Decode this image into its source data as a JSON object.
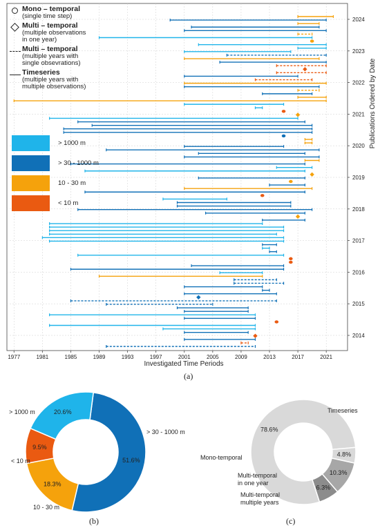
{
  "colors": {
    "gt1000": "#1fb4ea",
    "30to1000": "#1070b7",
    "10to30": "#f5a20c",
    "lt10": "#ea5a11",
    "grey_light": "#d9d9d9",
    "grey_mid": "#a7a7a7",
    "grey_dark": "#8c8c8c"
  },
  "legend_type": [
    {
      "symbol": "circle-icon",
      "title": "Mono – temporal",
      "desc": [
        "(single time step)"
      ]
    },
    {
      "symbol": "diamond-icon",
      "title": "Multi – temporal",
      "desc": [
        "(multiple observations",
        " in one year)"
      ]
    },
    {
      "symbol": "dashed-line-icon",
      "title": "Multi – temporal",
      "desc": [
        "(multiple years with",
        "single obsevrations)"
      ]
    },
    {
      "symbol": "solid-line-icon",
      "title": "Timeseries",
      "desc": [
        "(multiple years with",
        "multiple observations)"
      ]
    }
  ],
  "legend_resolution": [
    {
      "label": "> 1000 m",
      "color": "#1fb4ea"
    },
    {
      "label": "> 30 - 1000 m",
      "color": "#1070b7"
    },
    {
      "label": "10 - 30 m",
      "color": "#f5a20c"
    },
    {
      "label": "< 10 m",
      "color": "#ea5a11"
    }
  ],
  "panel_labels": {
    "a": "(a)",
    "b": "(b)",
    "c": "(c)"
  },
  "chart_data": [
    {
      "type": "timeline",
      "xlabel": "Investigated Time Periods",
      "ylabel": "Publications Ordered by Date",
      "xlim": [
        1976,
        2024
      ],
      "xticks": [
        1977,
        1981,
        1985,
        1989,
        1993,
        1997,
        2001,
        2005,
        2009,
        2013,
        2017,
        2021
      ],
      "year_ticks": [
        2024,
        2023,
        2022,
        2021,
        2020,
        2019,
        2018,
        2017,
        2016,
        2015,
        2014
      ],
      "grid": true,
      "entries": [
        {
          "start": 2017,
          "end": 2022,
          "color": "10to30",
          "style": "solid"
        },
        {
          "start": 1999,
          "end": 2021,
          "color": "30to1000",
          "style": "solid"
        },
        {
          "start": 2017,
          "end": 2020,
          "color": "10to30",
          "style": "solid"
        },
        {
          "start": 2002,
          "end": 2020,
          "color": "30to1000",
          "style": "solid"
        },
        {
          "start": 2001,
          "end": 2021,
          "color": "30to1000",
          "style": "solid"
        },
        {
          "start": 2017,
          "end": 2019,
          "color": "10to30",
          "style": "dashed"
        },
        {
          "start": 1989,
          "end": 2019,
          "color": "gt1000",
          "style": "solid"
        },
        {
          "start": 2019,
          "end": 2019,
          "color": "10to30",
          "style": "point"
        },
        {
          "start": 2003,
          "end": 2021,
          "color": "gt1000",
          "style": "solid"
        },
        {
          "start": 2017,
          "end": 2021,
          "color": "gt1000",
          "style": "solid"
        },
        {
          "start": 2001,
          "end": 2016,
          "color": "gt1000",
          "style": "solid"
        },
        {
          "start": 2007,
          "end": 2021,
          "color": "30to1000",
          "style": "dashed"
        },
        {
          "start": 2001,
          "end": 2020,
          "color": "10to30",
          "style": "solid"
        },
        {
          "start": 2006,
          "end": 2021,
          "color": "30to1000",
          "style": "solid"
        },
        {
          "start": 2014,
          "end": 2021,
          "color": "lt10",
          "style": "dashed"
        },
        {
          "start": 2018,
          "end": 2018,
          "color": "lt10",
          "style": "diamond"
        },
        {
          "start": 2014,
          "end": 2021,
          "color": "lt10",
          "style": "dashed"
        },
        {
          "start": 2001,
          "end": 2017,
          "color": "30to1000",
          "style": "solid"
        },
        {
          "start": 2011,
          "end": 2019,
          "color": "lt10",
          "style": "dashed"
        },
        {
          "start": 2001,
          "end": 2021,
          "color": "10to30",
          "style": "solid"
        },
        {
          "start": 2001,
          "end": 2020,
          "color": "30to1000",
          "style": "solid"
        },
        {
          "start": 2017,
          "end": 2020,
          "color": "10to30",
          "style": "dashed"
        },
        {
          "start": 2012,
          "end": 2019,
          "color": "30to1000",
          "style": "solid"
        },
        {
          "start": 2017,
          "end": 2021,
          "color": "10to30",
          "style": "solid"
        },
        {
          "start": 1977,
          "end": 2021,
          "color": "10to30",
          "style": "solid"
        },
        {
          "start": 2001,
          "end": 2015,
          "color": "gt1000",
          "style": "solid"
        },
        {
          "start": 2011,
          "end": 2012,
          "color": "gt1000",
          "style": "solid"
        },
        {
          "start": 2015,
          "end": 2015,
          "color": "lt10",
          "style": "point"
        },
        {
          "start": 2017,
          "end": 2017,
          "color": "10to30",
          "style": "diamond"
        },
        {
          "start": 1982,
          "end": 2017,
          "color": "gt1000",
          "style": "solid"
        },
        {
          "start": 1986,
          "end": 2018,
          "color": "30to1000",
          "style": "solid"
        },
        {
          "start": 1988,
          "end": 2019,
          "color": "30to1000",
          "style": "solid"
        },
        {
          "start": 1984,
          "end": 2019,
          "color": "30to1000",
          "style": "solid"
        },
        {
          "start": 1984,
          "end": 2019,
          "color": "30to1000",
          "style": "solid"
        },
        {
          "start": 2015,
          "end": 2015,
          "color": "30to1000",
          "style": "point"
        },
        {
          "start": 2018,
          "end": 2019,
          "color": "10to30",
          "style": "solid"
        },
        {
          "start": 2018,
          "end": 2019,
          "color": "10to30",
          "style": "solid"
        },
        {
          "start": 2001,
          "end": 2015,
          "color": "30to1000",
          "style": "solid"
        },
        {
          "start": 1990,
          "end": 2020,
          "color": "30to1000",
          "style": "solid"
        },
        {
          "start": 2003,
          "end": 2018,
          "color": "30to1000",
          "style": "solid"
        },
        {
          "start": 2001,
          "end": 2020,
          "color": "30to1000",
          "style": "solid"
        },
        {
          "start": 2018,
          "end": 2020,
          "color": "10to30",
          "style": "solid"
        },
        {
          "start": 1985,
          "end": 2018,
          "color": "30to1000",
          "style": "solid"
        },
        {
          "start": 2014,
          "end": 2019,
          "color": "gt1000",
          "style": "solid"
        },
        {
          "start": 1987,
          "end": 2018,
          "color": "gt1000",
          "style": "solid"
        },
        {
          "start": 2019,
          "end": 2019,
          "color": "10to30",
          "style": "diamond"
        },
        {
          "start": 2003,
          "end": 2018,
          "color": "30to1000",
          "style": "solid"
        },
        {
          "start": 2016,
          "end": 2016,
          "color": "10to30",
          "style": "point"
        },
        {
          "start": 2013,
          "end": 2018,
          "color": "30to1000",
          "style": "solid"
        },
        {
          "start": 2001,
          "end": 2019,
          "color": "10to30",
          "style": "solid"
        },
        {
          "start": 1987,
          "end": 2018,
          "color": "30to1000",
          "style": "solid"
        },
        {
          "start": 2012,
          "end": 2012,
          "color": "lt10",
          "style": "point"
        },
        {
          "start": 1998,
          "end": 2007,
          "color": "gt1000",
          "style": "solid"
        },
        {
          "start": 2000,
          "end": 2016,
          "color": "30to1000",
          "style": "solid"
        },
        {
          "start": 2000,
          "end": 2016,
          "color": "30to1000",
          "style": "solid"
        },
        {
          "start": 1986,
          "end": 2019,
          "color": "30to1000",
          "style": "solid"
        },
        {
          "start": 2004,
          "end": 2018,
          "color": "30to1000",
          "style": "solid"
        },
        {
          "start": 2017,
          "end": 2017,
          "color": "10to30",
          "style": "diamond"
        },
        {
          "start": 2012,
          "end": 2018,
          "color": "30to1000",
          "style": "solid"
        },
        {
          "start": 1982,
          "end": 2012,
          "color": "gt1000",
          "style": "solid"
        },
        {
          "start": 1982,
          "end": 2015,
          "color": "gt1000",
          "style": "solid"
        },
        {
          "start": 1982,
          "end": 2015,
          "color": "gt1000",
          "style": "solid"
        },
        {
          "start": 1982,
          "end": 2014,
          "color": "gt1000",
          "style": "solid"
        },
        {
          "start": 1981,
          "end": 2015,
          "color": "gt1000",
          "style": "solid"
        },
        {
          "start": 1982,
          "end": 2015,
          "color": "gt1000",
          "style": "solid"
        },
        {
          "start": 2012,
          "end": 2014,
          "color": "30to1000",
          "style": "solid"
        },
        {
          "start": 2012,
          "end": 2013,
          "color": "gt1000",
          "style": "solid"
        },
        {
          "start": 2013,
          "end": 2014,
          "color": "30to1000",
          "style": "solid"
        },
        {
          "start": 1986,
          "end": 2015,
          "color": "gt1000",
          "style": "solid"
        },
        {
          "start": 2016,
          "end": 2016,
          "color": "lt10",
          "style": "point"
        },
        {
          "start": 2016,
          "end": 2016,
          "color": "lt10",
          "style": "point"
        },
        {
          "start": 2002,
          "end": 2015,
          "color": "30to1000",
          "style": "solid"
        },
        {
          "start": 1985,
          "end": 2015,
          "color": "30to1000",
          "style": "solid"
        },
        {
          "start": 2006,
          "end": 2012,
          "color": "gt1000",
          "style": "solid"
        },
        {
          "start": 1989,
          "end": 2012,
          "color": "10to30",
          "style": "solid"
        },
        {
          "start": 2008,
          "end": 2014,
          "color": "30to1000",
          "style": "dashed"
        },
        {
          "start": 2008,
          "end": 2015,
          "color": "30to1000",
          "style": "dashed"
        },
        {
          "start": 2001,
          "end": 2012,
          "color": "30to1000",
          "style": "solid"
        },
        {
          "start": 2012,
          "end": 2013,
          "color": "30to1000",
          "style": "solid"
        },
        {
          "start": 2001,
          "end": 2014,
          "color": "30to1000",
          "style": "solid"
        },
        {
          "start": 2003,
          "end": 2003,
          "color": "30to1000",
          "style": "diamond"
        },
        {
          "start": 1985,
          "end": 2014,
          "color": "30to1000",
          "style": "dashed"
        },
        {
          "start": 1990,
          "end": 2005,
          "color": "30to1000",
          "style": "dashed"
        },
        {
          "start": 2000,
          "end": 2010,
          "color": "30to1000",
          "style": "solid"
        },
        {
          "start": 2001,
          "end": 2010,
          "color": "30to1000",
          "style": "solid"
        },
        {
          "start": 1982,
          "end": 2011,
          "color": "gt1000",
          "style": "solid"
        },
        {
          "start": 2001,
          "end": 2011,
          "color": "30to1000",
          "style": "solid"
        },
        {
          "start": 2014,
          "end": 2014,
          "color": "lt10",
          "style": "point"
        },
        {
          "start": 1982,
          "end": 2011,
          "color": "gt1000",
          "style": "solid"
        },
        {
          "start": 1998,
          "end": 2011,
          "color": "gt1000",
          "style": "solid"
        },
        {
          "start": 2001,
          "end": 2010,
          "color": "30to1000",
          "style": "solid"
        },
        {
          "start": 2011,
          "end": 2011,
          "color": "lt10",
          "style": "diamond"
        },
        {
          "start": 2001,
          "end": 2011,
          "color": "30to1000",
          "style": "solid"
        },
        {
          "start": 2009,
          "end": 2010,
          "color": "lt10",
          "style": "dashed"
        },
        {
          "start": 1990,
          "end": 2011,
          "color": "30to1000",
          "style": "dashed"
        }
      ]
    },
    {
      "type": "pie",
      "subtype": "donut",
      "slices": [
        {
          "label": "> 30 - 1000 m",
          "value": 51.6,
          "text": "51.6%",
          "color": "#1070b7"
        },
        {
          "label": "10 - 30 m",
          "value": 18.3,
          "text": "18.3%",
          "color": "#f5a20c"
        },
        {
          "label": "< 10 m",
          "value": 9.5,
          "text": "9.5%",
          "color": "#ea5a11"
        },
        {
          "label": "> 1000 m",
          "value": 20.6,
          "text": "20.6%",
          "color": "#1fb4ea"
        }
      ]
    },
    {
      "type": "pie",
      "subtype": "donut",
      "slices": [
        {
          "label": "Timeseries",
          "value": 78.6,
          "text": "78.6%",
          "color": "#d9d9d9"
        },
        {
          "label": "Multi-temporal multiple years",
          "value": 4.8,
          "text": "4.8%",
          "color": "#d9d9d9"
        },
        {
          "label": "Multi-temporal in one year",
          "value": 10.3,
          "text": "10.3%",
          "color": "#a7a7a7"
        },
        {
          "label": "Mono-temporal",
          "value": 6.3,
          "text": "6.3%",
          "color": "#8c8c8c"
        }
      ]
    }
  ]
}
